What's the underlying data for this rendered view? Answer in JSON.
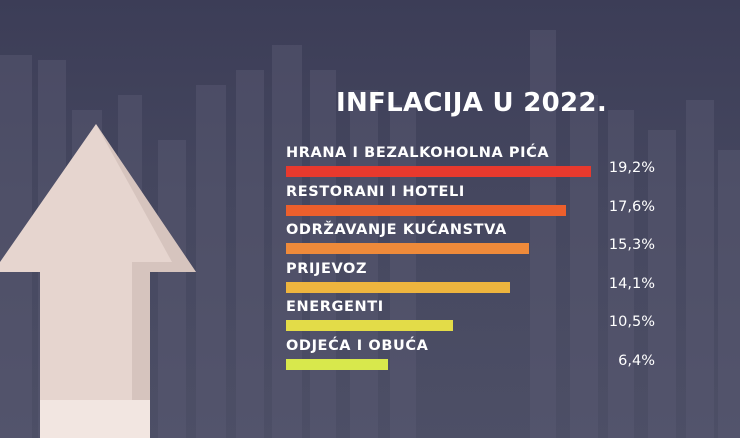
{
  "chart_data": {
    "type": "bar",
    "orientation": "horizontal",
    "title": "INFLACIJA U 2022.",
    "categories": [
      "HRANA I BEZALKOHOLNA PIĆA",
      "RESTORANI I HOTELI",
      "ODRŽAVANJE KUĆANSTVA",
      "PRIJEVOZ",
      "ENERGENTI",
      "ODJEĆA I OBUĆA"
    ],
    "values": [
      19.2,
      17.6,
      15.3,
      14.1,
      10.5,
      6.4
    ],
    "value_labels": [
      "19,2%",
      "17,6%",
      "15,3%",
      "14,1%",
      "10,5%",
      "6,4%"
    ],
    "bar_colors": [
      "#e8392d",
      "#ec5f2c",
      "#ee8a3a",
      "#eeb53e",
      "#e3dc48",
      "#d8e84c"
    ],
    "unit": "%",
    "xlim": [
      0,
      20.2
    ],
    "grid": false,
    "legend": "none"
  },
  "background": {
    "colors": {
      "base": "#42445c",
      "arrow": "#e5d3cc",
      "arrow_shadow": "#b8a49e"
    },
    "icon": "up-arrow-icon"
  }
}
